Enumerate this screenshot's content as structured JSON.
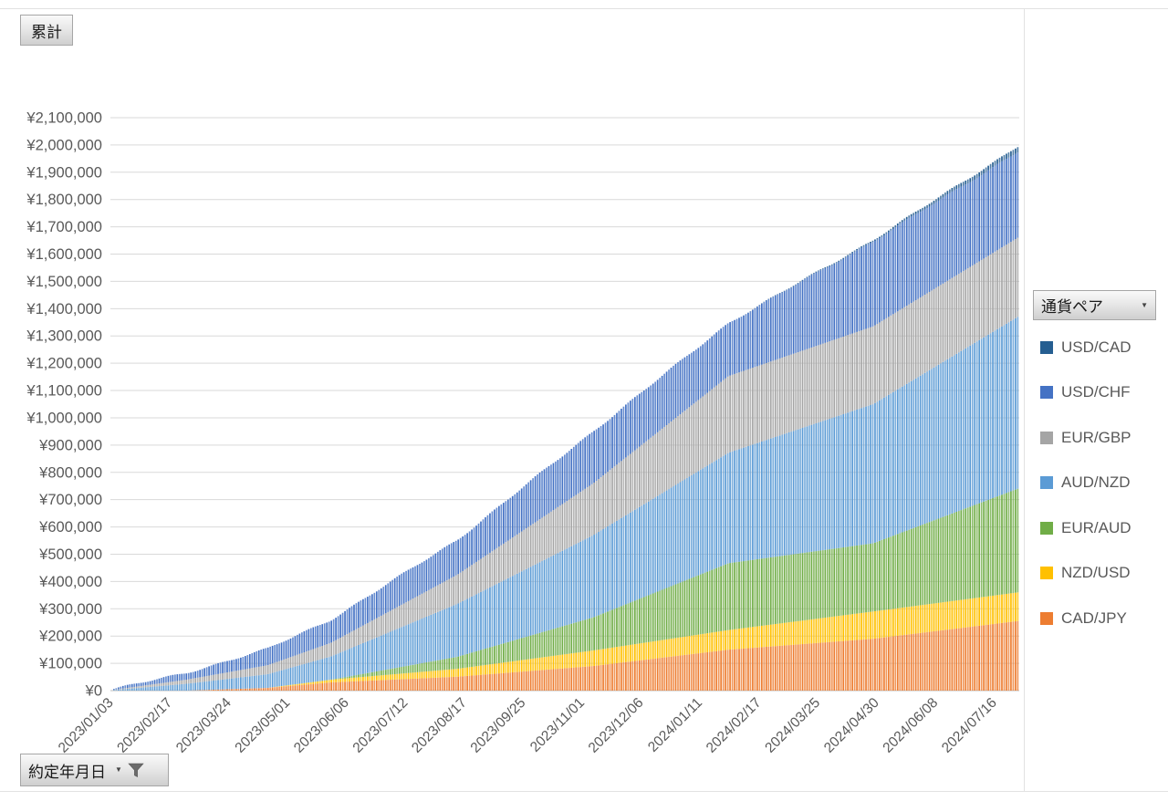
{
  "pivot_buttons": {
    "value_field": {
      "label": "累計"
    },
    "category_field": {
      "label": "約定年月日",
      "dropdown_icon": "caret-down",
      "filter_icon": "funnel"
    },
    "legend_field": {
      "label": "通貨ペア",
      "dropdown_icon": "caret-down"
    }
  },
  "colors": {
    "axis_text": "#595959",
    "gridline": "#d9d9d9",
    "axis_line": "#bfbfbf",
    "frame_line": "#e2e2e2"
  },
  "chart_data": {
    "type": "bar",
    "stacked": true,
    "subtype": "cumulative-daily-stacked-columns",
    "title": "",
    "xlabel": "約定年月日",
    "ylabel": "累計",
    "currency_prefix": "¥",
    "ylim": [
      0,
      2100000
    ],
    "y_tick_step": 100000,
    "grid": true,
    "bar_count": 400,
    "tick_interval_bars": 26,
    "x_tick_labels": [
      "2023/01/03",
      "2023/02/17",
      "2023/03/24",
      "2023/05/01",
      "2023/06/06",
      "2023/07/12",
      "2023/08/17",
      "2023/09/25",
      "2023/11/01",
      "2023/12/06",
      "2024/01/11",
      "2024/02/17",
      "2024/03/25",
      "2024/04/30",
      "2024/06/08",
      "2024/07/16"
    ],
    "keyframes_t": [
      0,
      0.08,
      0.17,
      0.24,
      0.38,
      0.53,
      0.68,
      0.84,
      1
    ],
    "series_bottom_to_top": [
      {
        "name": "CAD/JPY",
        "color": "#ED7D31",
        "cumulative_values_yen_k": [
          0,
          0,
          10,
          30,
          51,
          90,
          150,
          190,
          255
        ]
      },
      {
        "name": "NZD/USD",
        "color": "#FFC000",
        "cumulative_values_yen_k": [
          0,
          0,
          0,
          10,
          29,
          57,
          72,
          100,
          105
        ]
      },
      {
        "name": "EUR/AUD",
        "color": "#70AD47",
        "cumulative_values_yen_k": [
          0,
          0,
          0,
          0,
          44,
          121,
          245,
          250,
          380
        ]
      },
      {
        "name": "AUD/NZD",
        "color": "#5B9BD5",
        "cumulative_values_yen_k": [
          2,
          25,
          50,
          85,
          194,
          301,
          405,
          510,
          630
        ]
      },
      {
        "name": "EUR/GBP",
        "color": "#A5A5A5",
        "cumulative_values_yen_k": [
          1,
          15,
          33,
          50,
          107,
          190,
          281,
          285,
          290
        ]
      },
      {
        "name": "USD/CHF",
        "color": "#4472C4",
        "cumulative_values_yen_k": [
          3,
          25,
          60,
          85,
          128,
          191,
          195,
          312,
          315
        ]
      },
      {
        "name": "USD/CAD",
        "color": "#255E91",
        "cumulative_values_yen_k": [
          0,
          0,
          0,
          0,
          0,
          0,
          0,
          5,
          20
        ]
      }
    ],
    "approx_final_total_yen": 1995000,
    "legend_position": "right",
    "legend_title": "通貨ペア",
    "legend_items_top_to_bottom": [
      {
        "label": "USD/CAD",
        "color": "#255E91"
      },
      {
        "label": "USD/CHF",
        "color": "#4472C4"
      },
      {
        "label": "EUR/GBP",
        "color": "#A5A5A5"
      },
      {
        "label": "AUD/NZD",
        "color": "#5B9BD5"
      },
      {
        "label": "EUR/AUD",
        "color": "#70AD47"
      },
      {
        "label": "NZD/USD",
        "color": "#FFC000"
      },
      {
        "label": "CAD/JPY",
        "color": "#ED7D31"
      }
    ]
  }
}
